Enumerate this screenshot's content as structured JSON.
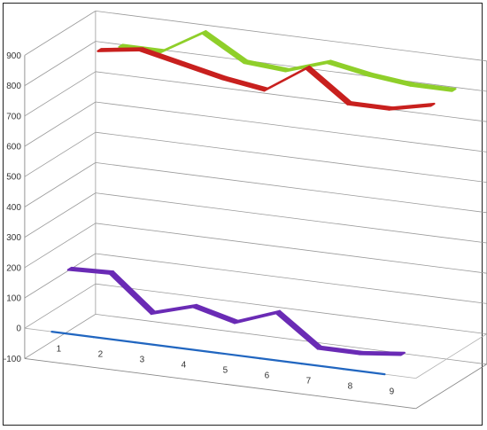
{
  "chart_data": {
    "type": "line",
    "style": "3d",
    "grid": true,
    "legend": "none",
    "y_ticks": [
      -100,
      0,
      100,
      200,
      300,
      400,
      500,
      600,
      700,
      800,
      900
    ],
    "ylim": [
      -100,
      900
    ],
    "categories": [
      1,
      2,
      3,
      4,
      5,
      6,
      7,
      8,
      9
    ],
    "series": [
      {
        "color": "#2166c0",
        "depth": 1.0,
        "values": [
          0,
          0,
          0,
          0,
          0,
          0,
          0,
          0,
          0
        ]
      },
      {
        "color": "#6a2bb5",
        "depth": 0.72,
        "values": [
          170,
          175,
          60,
          100,
          65,
          115,
          15,
          15,
          30
        ]
      },
      {
        "color": "#c8201e",
        "depth": 0.3,
        "values": [
          830,
          850,
          820,
          790,
          770,
          860,
          760,
          760,
          790
        ]
      },
      {
        "color": "#8fcf2a",
        "depth": 0.0,
        "values": [
          800,
          800,
          880,
          800,
          790,
          835,
          810,
          795,
          795
        ]
      }
    ]
  }
}
